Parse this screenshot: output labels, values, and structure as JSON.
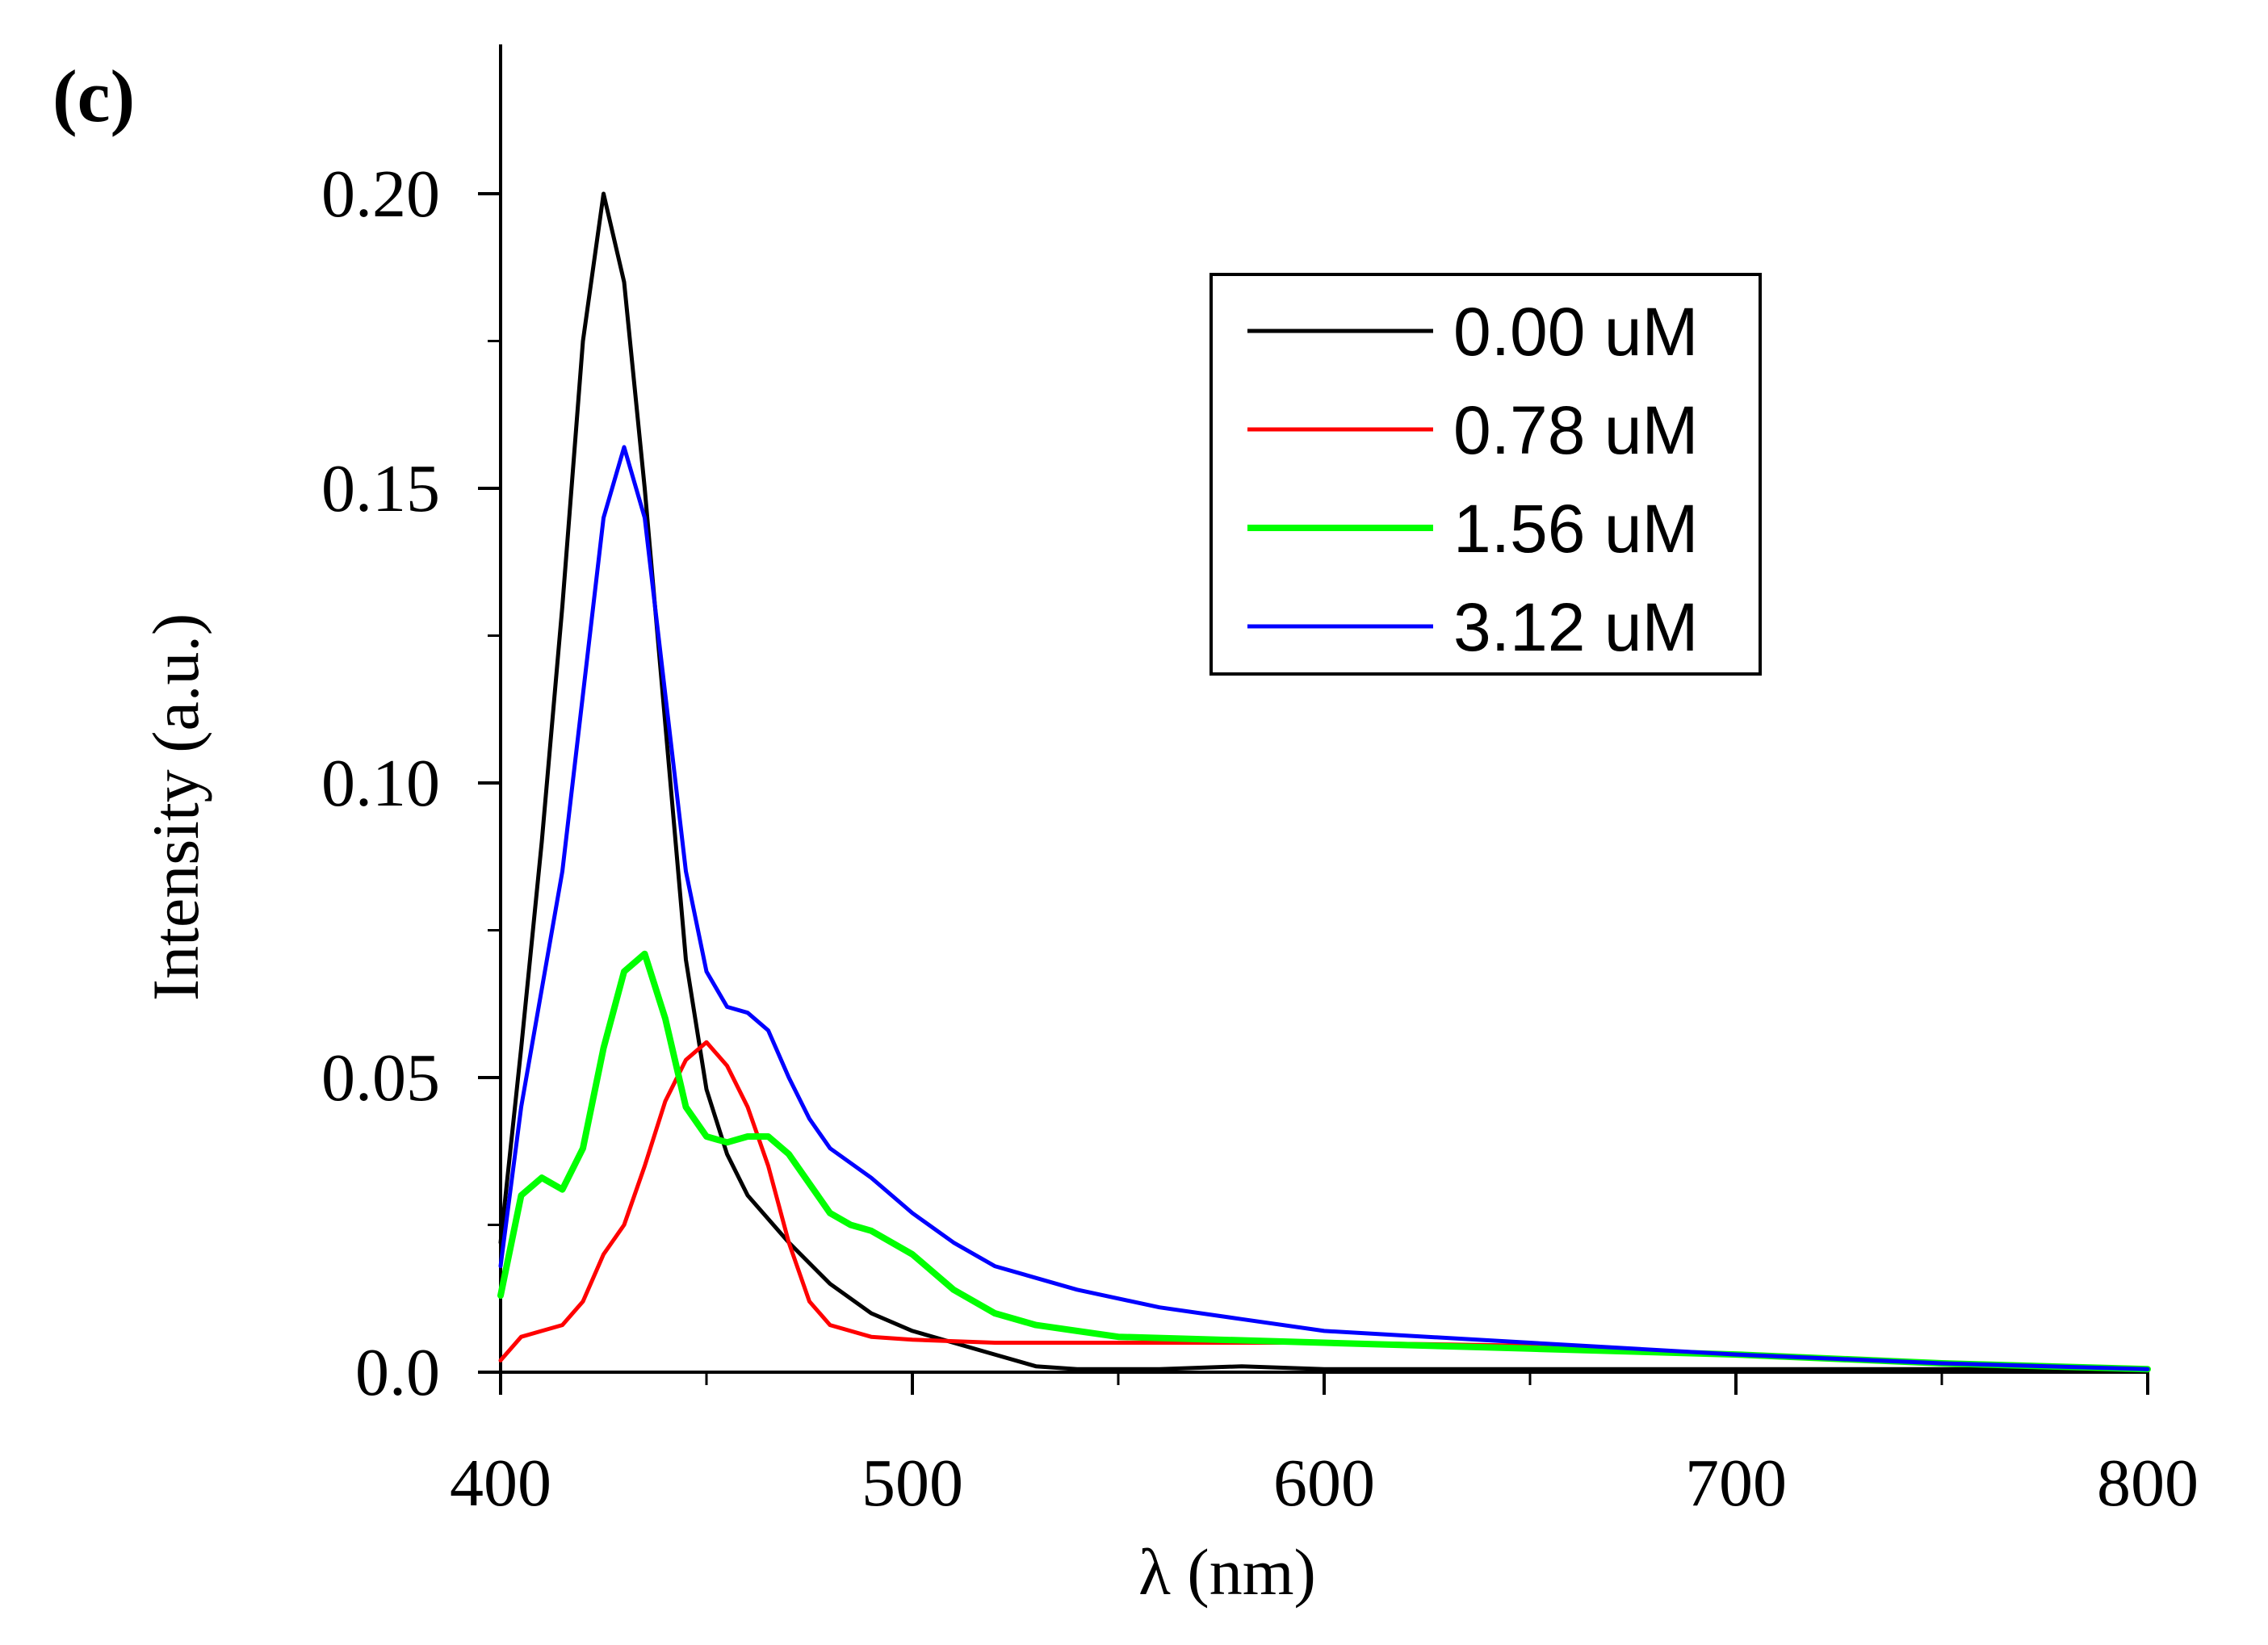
{
  "panel_label": "(c)",
  "chart_data": {
    "type": "line",
    "title": "",
    "xlabel": "λ (nm)",
    "ylabel": "Intensity (a.u.)",
    "xlim": [
      400,
      800
    ],
    "ylim": [
      0.0,
      0.22
    ],
    "xticks": [
      400,
      500,
      600,
      700,
      800
    ],
    "xtick_labels": [
      "400",
      "500",
      "600",
      "700",
      "800"
    ],
    "yticks": [
      0.0,
      0.05,
      0.1,
      0.15,
      0.2
    ],
    "ytick_labels": [
      "0.0",
      "0.05",
      "0.10",
      "0.15",
      "0.20"
    ],
    "grid": false,
    "legend_position": "top-right",
    "series": [
      {
        "name": "0.00 uM",
        "color": "#000000",
        "x": [
          400,
          405,
          410,
          415,
          420,
          425,
          430,
          435,
          440,
          445,
          450,
          455,
          460,
          470,
          480,
          490,
          500,
          510,
          520,
          530,
          540,
          560,
          580,
          600,
          650,
          700,
          750,
          800
        ],
        "y": [
          0.022,
          0.055,
          0.09,
          0.13,
          0.175,
          0.2,
          0.185,
          0.15,
          0.11,
          0.07,
          0.048,
          0.037,
          0.03,
          0.022,
          0.015,
          0.01,
          0.007,
          0.005,
          0.003,
          0.001,
          0.0005,
          0.0005,
          0.001,
          0.0005,
          0.0005,
          0.0005,
          0.0005,
          0.0005
        ]
      },
      {
        "name": "0.78 uM",
        "color": "#ff0000",
        "x": [
          400,
          405,
          410,
          415,
          420,
          425,
          430,
          435,
          440,
          445,
          450,
          455,
          460,
          465,
          470,
          475,
          480,
          490,
          500,
          520,
          550,
          600,
          650,
          700,
          750,
          800
        ],
        "y": [
          0.002,
          0.006,
          0.007,
          0.008,
          0.012,
          0.02,
          0.025,
          0.035,
          0.046,
          0.053,
          0.056,
          0.052,
          0.045,
          0.035,
          0.022,
          0.012,
          0.008,
          0.006,
          0.0055,
          0.005,
          0.005,
          0.005,
          0.0045,
          0.003,
          0.0015,
          0.0005
        ]
      },
      {
        "name": "1.56 uM",
        "color": "#00ff00",
        "x": [
          400,
          405,
          410,
          415,
          420,
          425,
          430,
          435,
          440,
          445,
          450,
          455,
          460,
          465,
          470,
          475,
          480,
          485,
          490,
          500,
          510,
          520,
          530,
          550,
          600,
          650,
          700,
          750,
          800
        ],
        "y": [
          0.013,
          0.03,
          0.033,
          0.031,
          0.038,
          0.055,
          0.068,
          0.071,
          0.06,
          0.045,
          0.04,
          0.039,
          0.04,
          0.04,
          0.037,
          0.032,
          0.027,
          0.025,
          0.024,
          0.02,
          0.014,
          0.01,
          0.008,
          0.006,
          0.005,
          0.004,
          0.003,
          0.0015,
          0.0005
        ]
      },
      {
        "name": "3.12 uM",
        "color": "#0000ff",
        "x": [
          400,
          405,
          410,
          415,
          420,
          425,
          430,
          435,
          440,
          445,
          450,
          455,
          460,
          465,
          470,
          475,
          480,
          490,
          500,
          510,
          520,
          540,
          560,
          580,
          600,
          650,
          700,
          750,
          800
        ],
        "y": [
          0.018,
          0.045,
          0.065,
          0.085,
          0.115,
          0.145,
          0.157,
          0.145,
          0.115,
          0.085,
          0.068,
          0.062,
          0.061,
          0.058,
          0.05,
          0.043,
          0.038,
          0.033,
          0.027,
          0.022,
          0.018,
          0.014,
          0.011,
          0.009,
          0.007,
          0.005,
          0.003,
          0.0015,
          0.0005
        ]
      }
    ]
  }
}
